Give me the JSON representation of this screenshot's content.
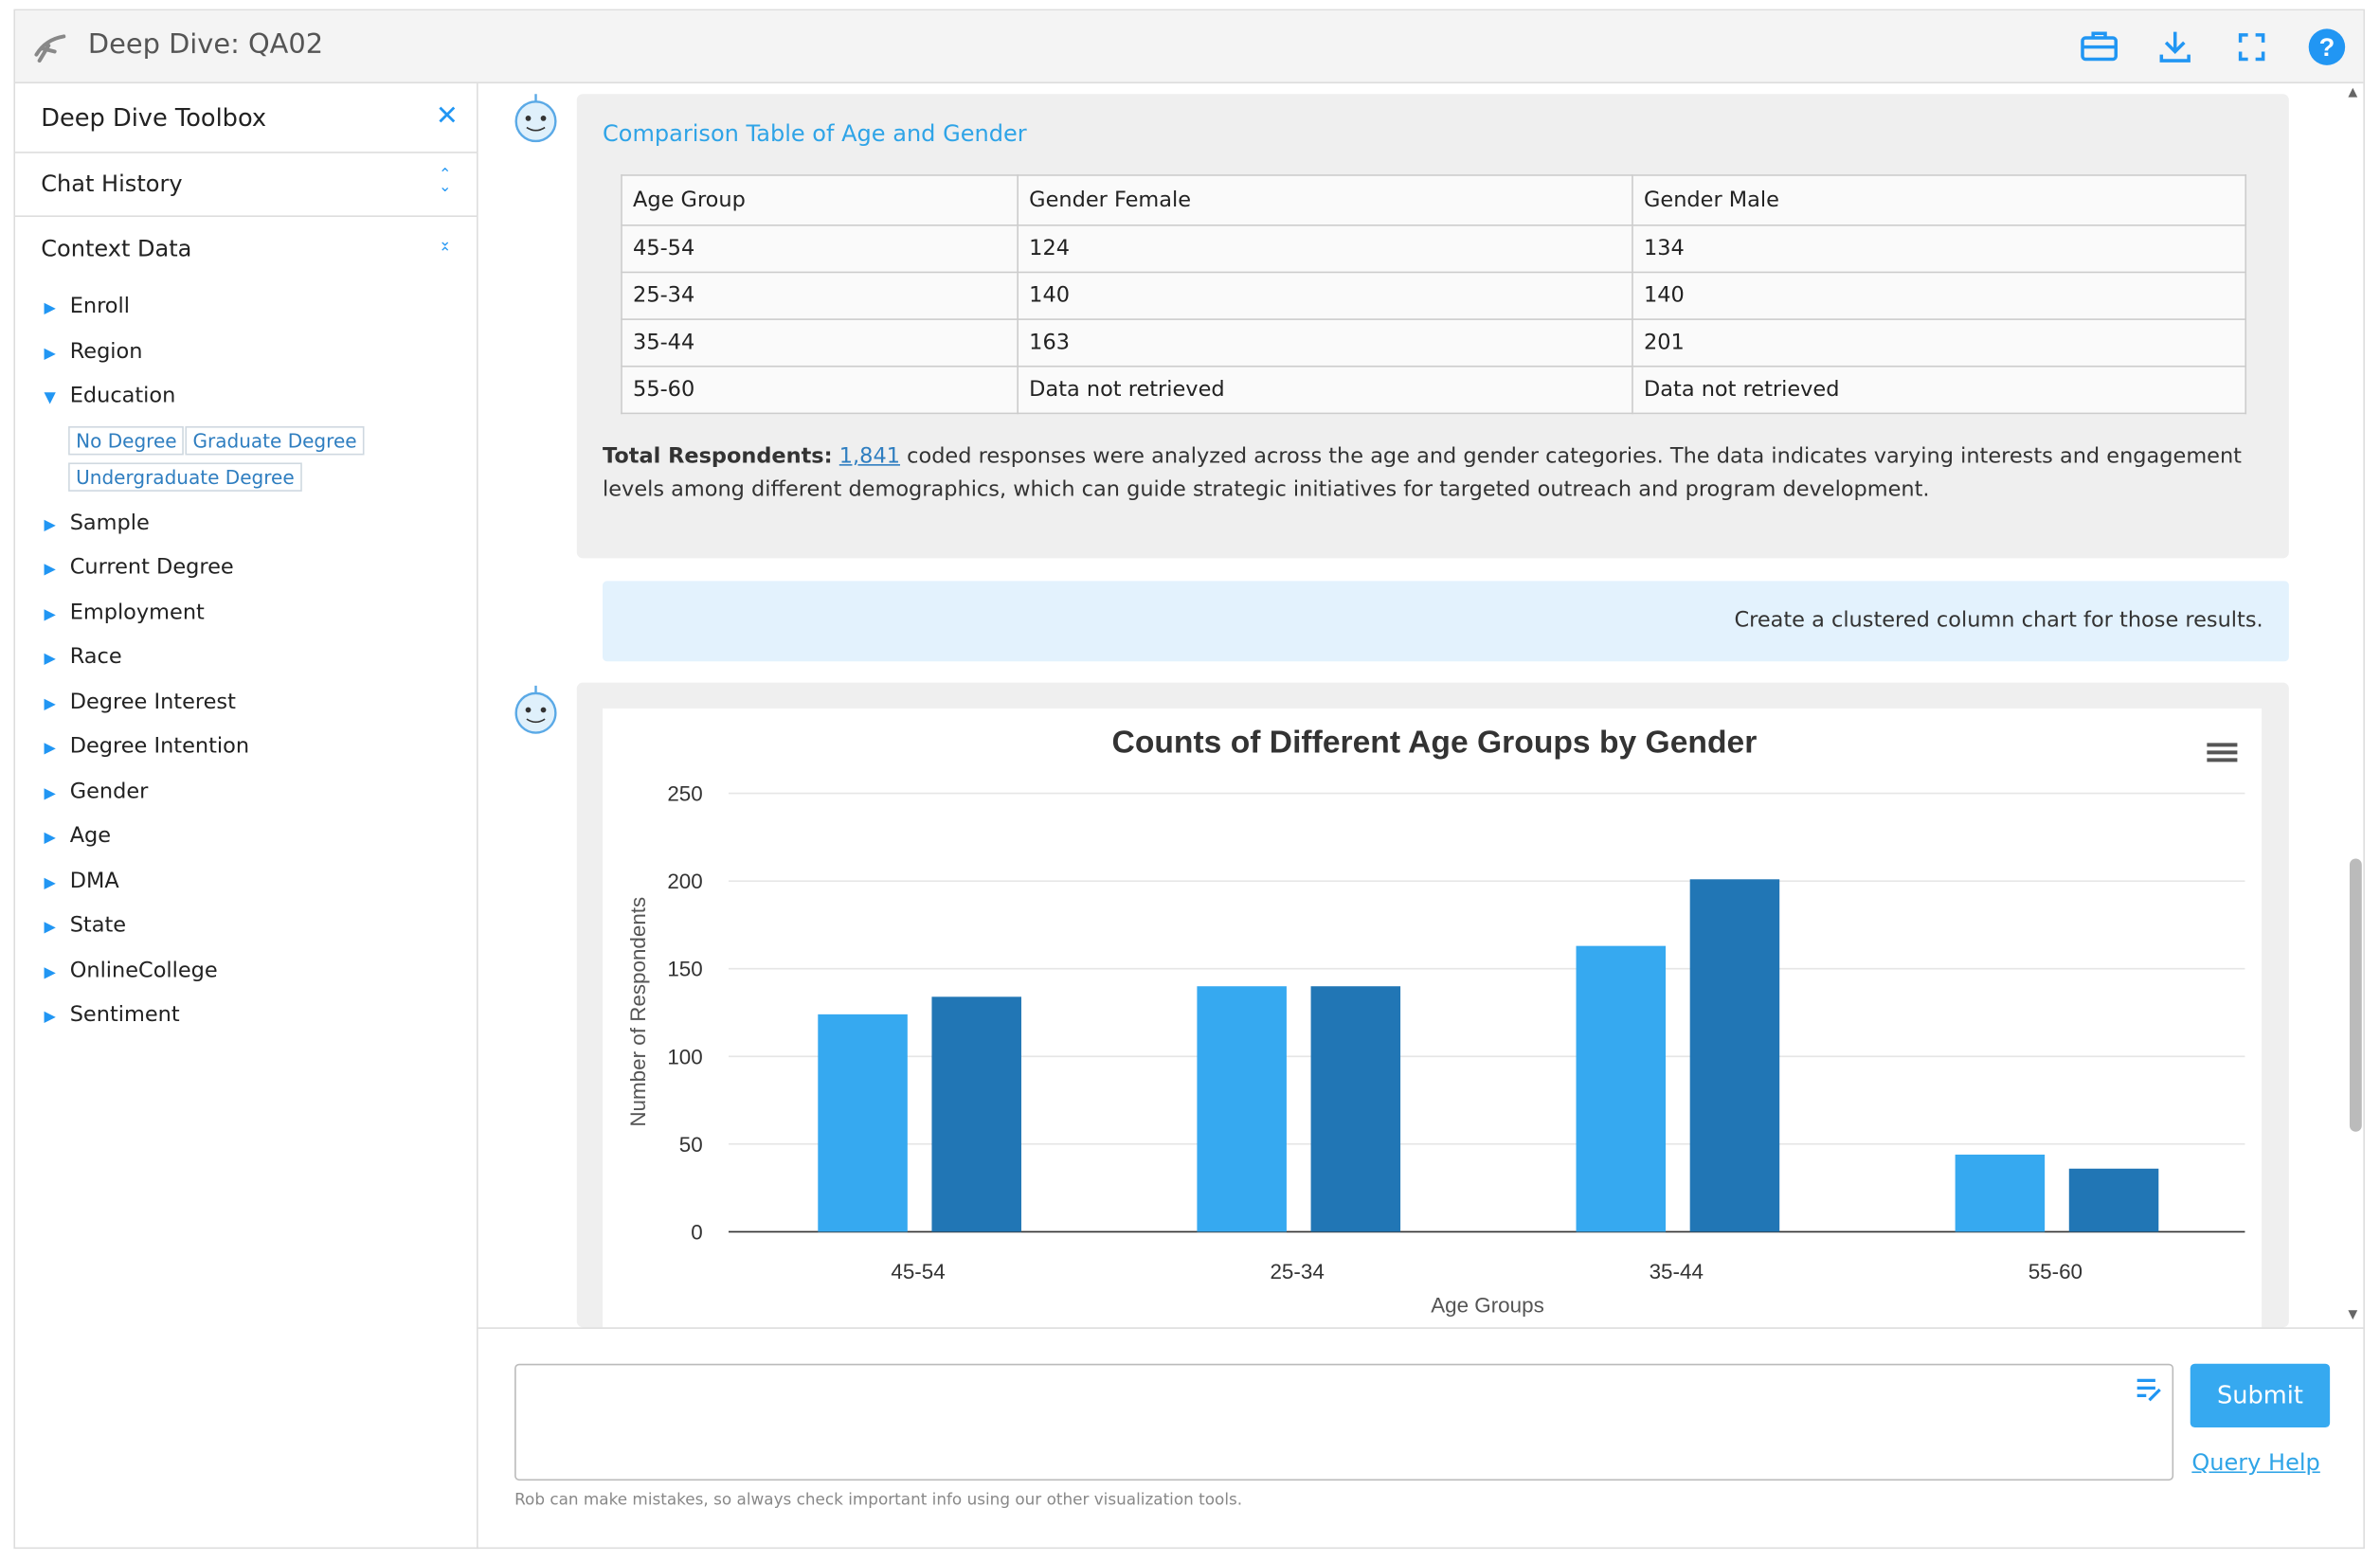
{
  "header": {
    "title": "Deep Dive: QA02"
  },
  "sidebar": {
    "title": "Deep Dive Toolbox",
    "sections": [
      "Chat History",
      "Context Data"
    ],
    "context_items": [
      "Enroll",
      "Region",
      "Education",
      "Sample",
      "Current Degree",
      "Employment",
      "Race",
      "Degree Interest",
      "Degree Intention",
      "Gender",
      "Age",
      "DMA",
      "State",
      "OnlineCollege",
      "Sentiment"
    ],
    "education_tags": [
      "No Degree",
      "Graduate Degree",
      "Undergraduate Degree"
    ]
  },
  "table": {
    "title": "Comparison Table of Age and Gender",
    "header": [
      "Age Group",
      "Gender Female",
      "Gender Male"
    ],
    "rows": [
      [
        "45-54",
        "124",
        "134"
      ],
      [
        "25-34",
        "140",
        "140"
      ],
      [
        "35-44",
        "163",
        "201"
      ],
      [
        "55-60",
        "Data not retrieved",
        "Data not retrieved"
      ]
    ]
  },
  "summary": {
    "label": "Total Respondents:",
    "count": "1,841",
    "text": "coded responses were analyzed across the age and gender categories. The data indicates varying interests and engagement levels among different demographics, which can guide strategic initiatives for targeted outreach and program development."
  },
  "user_message": "Create a clustered column chart for those results.",
  "chart_data": {
    "type": "bar",
    "title": "Counts of Different Age Groups by Gender",
    "x_label": "Age Groups",
    "y_label": "Number of Respondents",
    "categories": [
      "45-54",
      "25-34",
      "35-44",
      "55-60"
    ],
    "series": [
      {
        "color": "#36a9f0",
        "values": [
          124,
          140,
          163,
          44
        ]
      },
      {
        "color": "#2176b5",
        "values": [
          134,
          140,
          201,
          36
        ]
      }
    ],
    "ylim": [
      0,
      250
    ],
    "yticks": [
      0,
      50,
      100,
      150,
      200,
      250
    ],
    "grid": true
  },
  "input": {
    "submit": "Submit",
    "help": "Query Help",
    "disclaimer": "Rob can make mistakes, so always check important info using our other visualization tools."
  }
}
